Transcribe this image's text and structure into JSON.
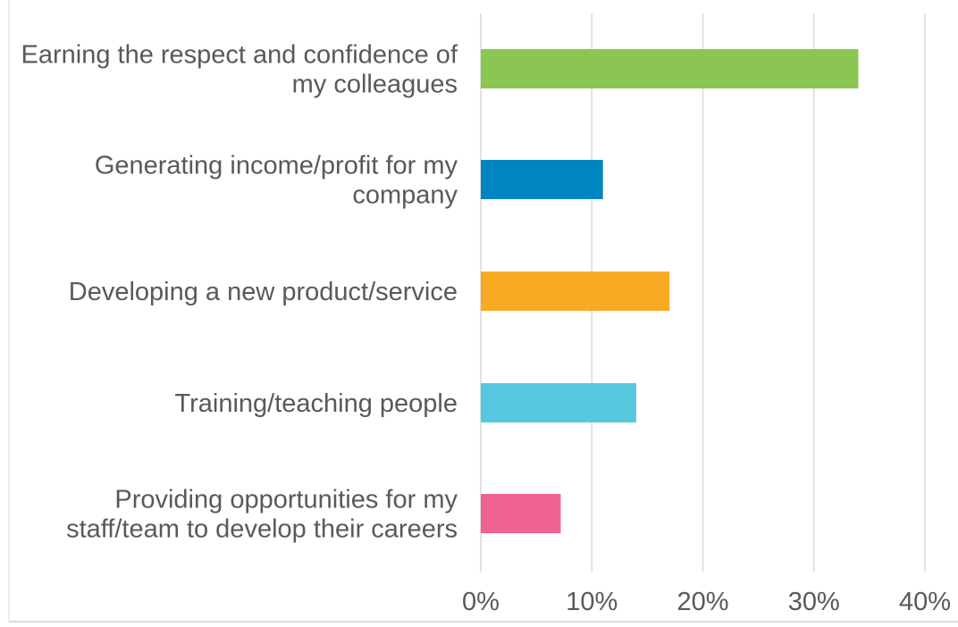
{
  "chart_data": {
    "type": "bar",
    "orientation": "horizontal",
    "title": "",
    "xlabel": "",
    "ylabel": "",
    "categories": [
      [
        "Earning the respect and confidence of",
        "my colleagues"
      ],
      [
        "Generating income/profit for my",
        "company"
      ],
      [
        "Developing a new product/service"
      ],
      [
        "Training/teaching people"
      ],
      [
        "Providing opportunities for my",
        "staff/team to develop their careers"
      ]
    ],
    "values": [
      34,
      11,
      17,
      14,
      7.2
    ],
    "colors": [
      "#8bc653",
      "#0085c3",
      "#f9aa25",
      "#55c8e0",
      "#f06292"
    ],
    "xlim": [
      0,
      40
    ],
    "ticks": [
      "0%",
      "10%",
      "20%",
      "30%",
      "40%"
    ],
    "grid": true,
    "gridColor": "#d9d9d9"
  }
}
